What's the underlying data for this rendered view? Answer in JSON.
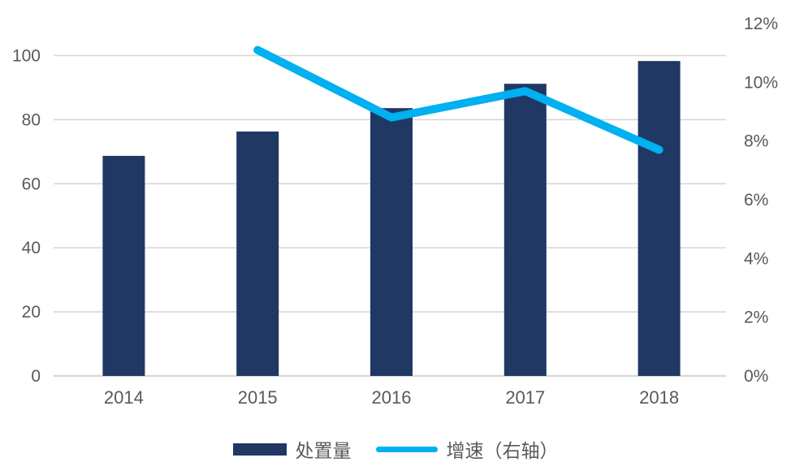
{
  "chart_data": {
    "type": "combo",
    "title": "",
    "categories": [
      "2014",
      "2015",
      "2016",
      "2017",
      "2018"
    ],
    "series": [
      {
        "name": "处置量",
        "type": "bar",
        "axis": "left",
        "values": [
          68.7,
          76.3,
          83.6,
          91.2,
          98.3
        ]
      },
      {
        "name": "增速（右轴）",
        "type": "line",
        "axis": "right",
        "values": [
          null,
          11.1,
          8.8,
          9.7,
          7.7
        ],
        "unit": "percent"
      }
    ],
    "left_axis": {
      "min": 0,
      "max": 110,
      "ticks": [
        0,
        20,
        40,
        60,
        80,
        100
      ],
      "tick_labels": [
        "0",
        "20",
        "40",
        "60",
        "80",
        "100"
      ]
    },
    "right_axis": {
      "min": 0,
      "max": 12,
      "ticks": [
        0,
        2,
        4,
        6,
        8,
        10,
        12
      ],
      "tick_labels": [
        "0%",
        "2%",
        "4%",
        "6%",
        "8%",
        "10%",
        "12%"
      ]
    },
    "grid": true,
    "legend_position": "bottom"
  },
  "colors": {
    "bar": "#1F3864",
    "line": "#00B0F0",
    "gridline": "#D9D9D9",
    "axis_text": "#595959",
    "background": "#FFFFFF"
  }
}
